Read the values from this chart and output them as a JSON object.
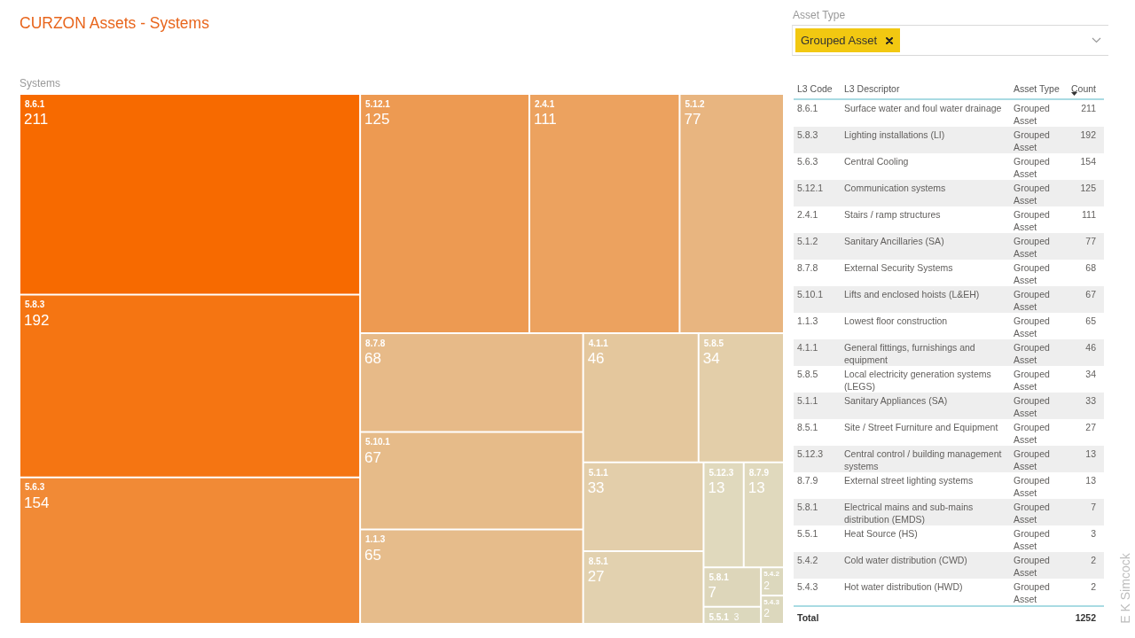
{
  "chart_data": [
    {
      "type": "other",
      "title": "CURZON Assets - Systems",
      "subtitle": "Systems",
      "categories": [
        "8.6.1",
        "5.8.3",
        "5.6.3",
        "5.12.1",
        "2.4.1",
        "5.1.2",
        "8.7.8",
        "5.10.1",
        "1.1.3",
        "4.1.1",
        "5.8.5",
        "5.1.1",
        "8.5.1",
        "5.12.3",
        "8.7.9",
        "5.8.1",
        "5.5.1",
        "5.4.2",
        "5.4.3"
      ],
      "values": [
        211,
        192,
        154,
        125,
        111,
        77,
        68,
        67,
        65,
        46,
        34,
        33,
        27,
        13,
        13,
        7,
        3,
        2,
        2
      ],
      "value_labels": [
        "211",
        "192",
        "154",
        "125",
        "111",
        "77",
        "68",
        "67",
        "65",
        "46",
        "34",
        "33",
        "27",
        "13",
        "13",
        "7",
        "3",
        "2",
        "2"
      ],
      "colors": [
        "#f76a00",
        "#f57512",
        "#f18a36",
        "#ed9a52",
        "#eca25f",
        "#e8b580",
        "#e7ba88",
        "#e6bb89",
        "#e6bc8b",
        "#e4c79d",
        "#e3cea9",
        "#e3ceaa",
        "#e2d1af",
        "#e0d9bd",
        "#e0d9bd",
        "#ddd6ba",
        "#dcd8bd",
        "#dcd8bd",
        "#dcd8bd"
      ]
    },
    {
      "type": "other",
      "categories": [
        "L3 Code",
        "L3 Descriptor",
        "Asset Type",
        "Count"
      ],
      "cell_labels": [
        [
          "8.6.1",
          "Surface water and foul water drainage",
          "Grouped Asset",
          "211"
        ],
        [
          "5.8.3",
          "Lighting installations (LI)",
          "Grouped Asset",
          "192"
        ],
        [
          "5.6.3",
          "Central Cooling",
          "Grouped Asset",
          "154"
        ],
        [
          "5.12.1",
          "Communication systems",
          "Grouped Asset",
          "125"
        ],
        [
          "2.4.1",
          "Stairs / ramp structures",
          "Grouped Asset",
          "111"
        ],
        [
          "5.1.2",
          "Sanitary Ancillaries (SA)",
          "Grouped Asset",
          "77"
        ],
        [
          "8.7.8",
          "External Security Systems",
          "Grouped Asset",
          "68"
        ],
        [
          "5.10.1",
          "Lifts and enclosed hoists (L&EH)",
          "Grouped Asset",
          "67"
        ],
        [
          "1.1.3",
          "Lowest floor construction",
          "Grouped Asset",
          "65"
        ],
        [
          "4.1.1",
          "General fittings, furnishings and equipment",
          "Grouped Asset",
          "46"
        ],
        [
          "5.8.5",
          "Local electricity generation systems (LEGS)",
          "Grouped Asset",
          "34"
        ],
        [
          "5.1.1",
          "Sanitary Appliances (SA)",
          "Grouped Asset",
          "33"
        ],
        [
          "8.5.1",
          "Site / Street Furniture and Equipment",
          "Grouped Asset",
          "27"
        ],
        [
          "5.12.3",
          "Central control / building management systems",
          "Grouped Asset",
          "13"
        ],
        [
          "8.7.9",
          "External street lighting systems",
          "Grouped Asset",
          "13"
        ],
        [
          "5.8.1",
          "Electrical mains and sub-mains distribution (EMDS)",
          "Grouped Asset",
          "7"
        ],
        [
          "5.5.1",
          "Heat Source (HS)",
          "Grouped Asset",
          "3"
        ],
        [
          "5.4.2",
          "Cold water distribution (CWD)",
          "Grouped Asset",
          "2"
        ],
        [
          "5.4.3",
          "Hot water distribution (HWD)",
          "Grouped Asset",
          "2"
        ],
        [
          "Total",
          null,
          null,
          "1252"
        ]
      ],
      "annotations": [
        "E K Simcock"
      ]
    },
    {
      "type": "other",
      "title": "Asset Type",
      "annotations": [
        "Grouped Asset"
      ]
    }
  ]
}
